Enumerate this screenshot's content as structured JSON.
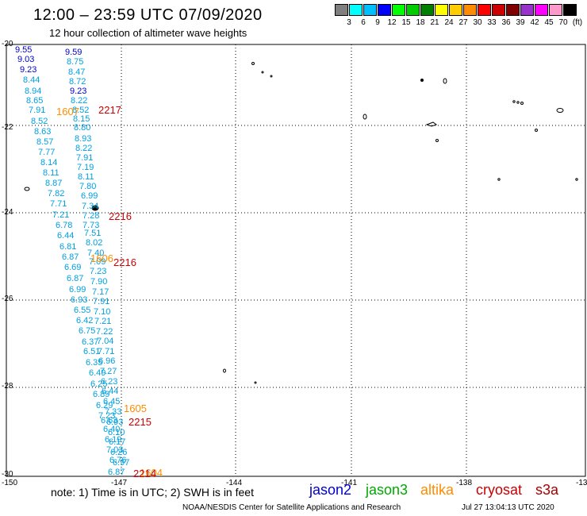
{
  "header": {
    "title": "12:00 – 23:59 UTC 07/09/2020",
    "subtitle": "12 hour collection of altimeter wave heights"
  },
  "legend": {
    "colors": [
      "#7f7f7f",
      "#00ffff",
      "#00bfff",
      "#0000ff",
      "#00ff00",
      "#00cc00",
      "#008000",
      "#ffff00",
      "#ffcc00",
      "#ff8c00",
      "#ff0000",
      "#cc0000",
      "#800000",
      "#9932cc",
      "#ff00ff",
      "#ff99cc",
      "#000000"
    ],
    "labels": [
      "3",
      "6",
      "9",
      "12",
      "15",
      "18",
      "21",
      "24",
      "27",
      "30",
      "33",
      "36",
      "39",
      "42",
      "45",
      "70",
      "(ft)"
    ]
  },
  "axes": {
    "lat_labels": [
      "-20",
      "-22",
      "-24",
      "-26",
      "-28",
      "-30"
    ],
    "lon_labels": [
      "-150",
      "-147",
      "-144",
      "-141",
      "-138",
      "-13"
    ]
  },
  "track": {
    "color": "#00a0e0",
    "blue_color": "#0000cc",
    "orange_color": "#ff8c00",
    "red_color": "#cc0000",
    "col1": [
      "9.55",
      "9.03",
      "9.23",
      "8.44",
      "8.94",
      "8.65",
      "7.91",
      "8.52",
      "8.63",
      "8.57",
      "7.77",
      "8.14",
      "8.11",
      "8.87",
      "7.82",
      "7.71",
      "7.21",
      "6.78",
      "6.44",
      "6.81",
      "6.87",
      "6.69",
      "6.87",
      "6.99",
      "6.93",
      "6.55",
      "6.42",
      "6.75",
      "6.37",
      "6.51",
      "6.35",
      "6.49",
      "6.25",
      "6.89",
      "6.29",
      "7.23",
      "6.63",
      "6.40",
      "6.19",
      "7.03",
      "6.76",
      "6.87"
    ],
    "col2": [
      "9.59",
      "8.75",
      "8.47",
      "8.72",
      "9.23",
      "8.22",
      "8.52",
      "8.15",
      "8.80",
      "8.93",
      "8.22",
      "7.91",
      "7.19",
      "8.11",
      "7.80",
      "6.99",
      "7.34",
      "7.28",
      "7.73",
      "7.51",
      "8.02",
      "7.40",
      "7.09",
      "7.23",
      "7.90",
      "7.17",
      "7.91",
      "7.10",
      "7.21",
      "7.22",
      "7.04",
      "7.71",
      "6.96",
      "7.27",
      "6.23",
      "6.44",
      "6.45",
      "7.33",
      "6.93",
      "6.10",
      "6.17",
      "6.26",
      "6.97"
    ],
    "orange_labels": [
      "1607",
      "1606",
      "1605",
      "1604"
    ],
    "red_labels": [
      "2217",
      "2216",
      "2216",
      "2215",
      "2214"
    ]
  },
  "footer": {
    "note": "note: 1) Time is in UTC; 2) SWH is in feet",
    "satellites": [
      {
        "name": "jason2",
        "color": "#0000cc"
      },
      {
        "name": "jason3",
        "color": "#00aa00"
      },
      {
        "name": "altika",
        "color": "#ff8c00"
      },
      {
        "name": "cryosat",
        "color": "#cc0000"
      },
      {
        "name": "s3a",
        "color": "#aa0000"
      }
    ],
    "credit": "NOAA/NESDIS Center for Satellite Applications and Research",
    "timestamp": "Jul 27 13:04:13 UTC 2020"
  }
}
